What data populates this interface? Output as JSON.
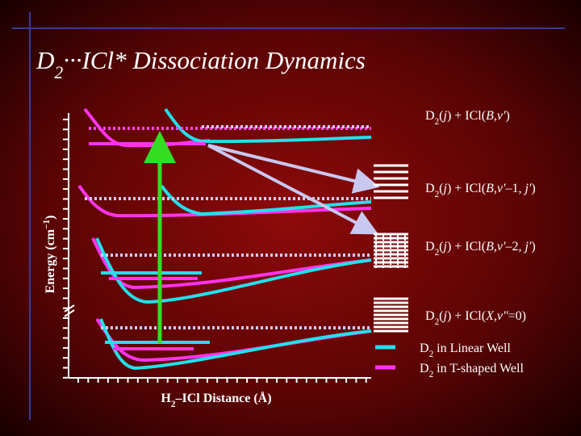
{
  "title": [
    "D",
    "2",
    "···ICl* Dissociation Dynamics"
  ],
  "y_axis_label": [
    "Energy (cm",
    "−1",
    ")"
  ],
  "x_axis_label": [
    "H",
    "2",
    "–ICl Distance (Å)"
  ],
  "channels": [
    [
      "D",
      "2",
      "(",
      "j",
      ") + ICl(",
      "B",
      ",",
      "v′",
      ")"
    ],
    [
      "D",
      "2",
      "(",
      "j",
      ") + ICl(",
      "B",
      ",",
      "v′",
      "–1, ",
      "j′",
      ")"
    ],
    [
      "D",
      "2",
      "(",
      "j",
      ") + ICl(",
      "B",
      ",",
      "v′",
      "–2, ",
      "j′",
      ")"
    ],
    [
      "D",
      "2",
      "(",
      "j",
      ") + ICl(",
      "X",
      ",",
      "v″",
      "=0)"
    ]
  ],
  "legend": [
    [
      "D",
      "2",
      " in Linear Well"
    ],
    [
      "D",
      "2",
      " in T-shaped Well"
    ]
  ]
}
